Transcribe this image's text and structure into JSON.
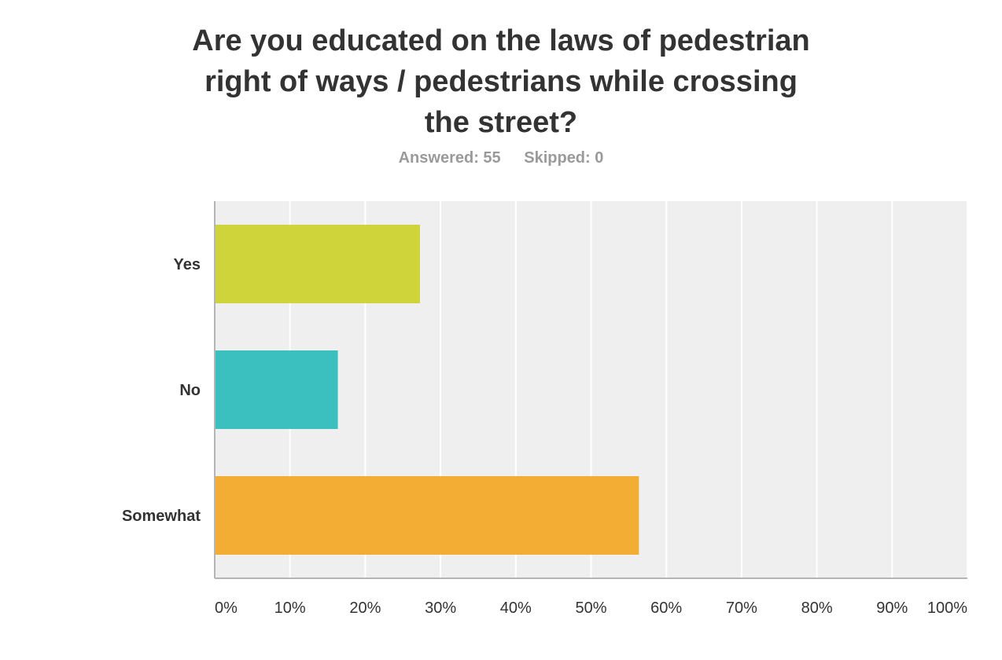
{
  "header": {
    "title_lines": [
      "Are you educated on the laws of pedestrian",
      "right of ways / pedestrians while crossing",
      "the street?"
    ],
    "answered": "Answered: 55",
    "skipped": "Skipped: 0"
  },
  "chart_data": {
    "type": "bar",
    "orientation": "horizontal",
    "title": "Are you educated on the laws of pedestrian right of ways / pedestrians while crossing the street?",
    "categories": [
      "Yes",
      "No",
      "Somewhat"
    ],
    "values": [
      27.27,
      16.36,
      56.36
    ],
    "unit": "%",
    "xlim": [
      0,
      100
    ],
    "xticks": [
      0,
      10,
      20,
      30,
      40,
      50,
      60,
      70,
      80,
      90,
      100
    ],
    "xtick_labels": [
      "0%",
      "10%",
      "20%",
      "30%",
      "40%",
      "50%",
      "60%",
      "70%",
      "80%",
      "90%",
      "100%"
    ],
    "colors": [
      "#cfd43b",
      "#3bbfbf",
      "#f4ad34"
    ],
    "plot_background": "#efefef",
    "grid": true,
    "legend": "none"
  }
}
